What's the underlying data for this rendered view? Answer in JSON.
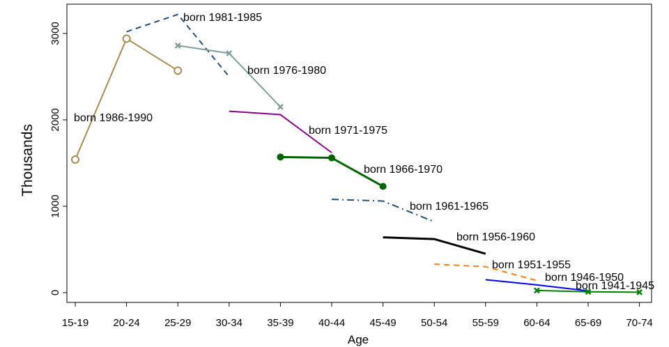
{
  "chart_data": {
    "type": "line",
    "title": "",
    "xlabel": "Age",
    "ylabel": "Thousands",
    "categories": [
      "15-19",
      "20-24",
      "25-29",
      "30-34",
      "35-39",
      "40-44",
      "45-49",
      "50-54",
      "55-59",
      "60-64",
      "65-69",
      "70-74"
    ],
    "y_ticks": [
      0,
      1000,
      2000,
      3000
    ],
    "y_tick_labels": [
      "0",
      "1000",
      "2000",
      "3000"
    ],
    "ylim": [
      -100,
      3300
    ],
    "grid": false,
    "legend": "none (series labelled inline)",
    "series": [
      {
        "name": "born 1986-1990",
        "x": [
          "15-19",
          "20-24",
          "25-29"
        ],
        "values": [
          1540,
          2940,
          2570
        ],
        "color": "#a68c52",
        "dash": "solid",
        "marker": "hollow-circle"
      },
      {
        "name": "born 1981-1985",
        "x": [
          "20-24",
          "25-29",
          "30-34"
        ],
        "values": [
          3020,
          3220,
          2500
        ],
        "color": "#1f4e79",
        "dash": "dashed",
        "marker": "none"
      },
      {
        "name": "born 1976-1980",
        "x": [
          "25-29",
          "30-34",
          "35-39"
        ],
        "values": [
          2860,
          2770,
          2150
        ],
        "color": "#7f9e9a",
        "dash": "solid",
        "marker": "x"
      },
      {
        "name": "born 1971-1975",
        "x": [
          "30-34",
          "35-39",
          "40-44"
        ],
        "values": [
          2100,
          2060,
          1620
        ],
        "color": "#8b008b",
        "dash": "solid",
        "marker": "none"
      },
      {
        "name": "born 1966-1970",
        "x": [
          "35-39",
          "40-44",
          "45-49"
        ],
        "values": [
          1570,
          1560,
          1230
        ],
        "color": "#006400",
        "dash": "solid",
        "marker": "filled-circle"
      },
      {
        "name": "born 1961-1965",
        "x": [
          "40-44",
          "45-49",
          "50-54"
        ],
        "values": [
          1080,
          1060,
          820
        ],
        "color": "#1f4e79",
        "dash": "dashdot",
        "marker": "none"
      },
      {
        "name": "born 1956-1960",
        "x": [
          "45-49",
          "50-54",
          "55-59"
        ],
        "values": [
          640,
          620,
          450
        ],
        "color": "#000000",
        "dash": "solid",
        "marker": "none"
      },
      {
        "name": "born 1951-1955",
        "x": [
          "50-54",
          "55-59",
          "60-64"
        ],
        "values": [
          330,
          300,
          140
        ],
        "color": "#ff7f0e",
        "dash": "dashed",
        "marker": "none"
      },
      {
        "name": "born 1946-1950",
        "x": [
          "55-59",
          "60-64",
          "65-69"
        ],
        "values": [
          150,
          90,
          20
        ],
        "color": "#0000ff",
        "dash": "solid",
        "marker": "none"
      },
      {
        "name": "born 1941-1945",
        "x": [
          "60-64",
          "65-69",
          "70-74"
        ],
        "values": [
          25,
          10,
          5
        ],
        "color": "#008000",
        "dash": "solid",
        "marker": "x"
      }
    ]
  }
}
